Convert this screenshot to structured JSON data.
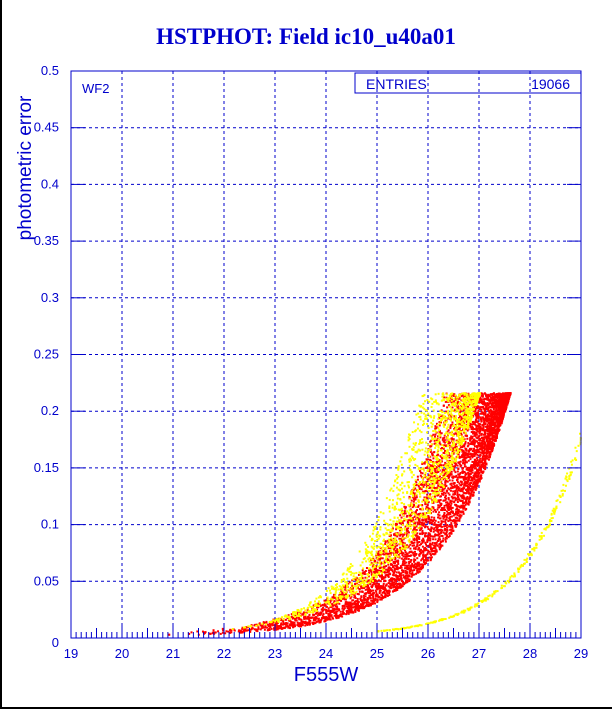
{
  "chart_data": {
    "type": "scatter",
    "title": "HSTPHOT: Field ic10_u40a01",
    "xlabel": "F555W",
    "ylabel": "photometric error",
    "xlim": [
      19,
      29
    ],
    "ylim": [
      0,
      0.5
    ],
    "xticks": [
      "19",
      "20",
      "21",
      "22",
      "23",
      "24",
      "25",
      "26",
      "27",
      "28",
      "29"
    ],
    "yticks": [
      "0",
      "0.05",
      "0.1",
      "0.15",
      "0.2",
      "0.25",
      "0.3",
      "0.35",
      "0.4",
      "0.45",
      "0.5"
    ],
    "grid": true,
    "panel_label": "WF2",
    "stats": {
      "label": "ENTRIES",
      "value": "19066"
    },
    "series": [
      {
        "name": "red stars",
        "color": "#ff0000",
        "mag_range": [
          20,
          27.6
        ],
        "error_cap": 0.215,
        "lower_envelope": [
          [
            24,
            0.014
          ],
          [
            25,
            0.031
          ],
          [
            26,
            0.066
          ],
          [
            27,
            0.137
          ],
          [
            27.6,
            0.215
          ]
        ],
        "upper_envelope": [
          [
            23,
            0.016
          ],
          [
            24,
            0.034
          ],
          [
            25,
            0.076
          ],
          [
            26,
            0.17
          ],
          [
            26.3,
            0.215
          ]
        ]
      },
      {
        "name": "yellow stars",
        "color": "#ffff00",
        "mag_range": [
          22,
          27
        ],
        "error_cap": 0.215,
        "lower_envelope": [
          [
            24,
            0.026
          ],
          [
            25,
            0.053
          ],
          [
            26,
            0.107
          ],
          [
            27,
            0.215
          ]
        ],
        "upper_envelope": [
          [
            23,
            0.016
          ],
          [
            24,
            0.042
          ],
          [
            25,
            0.105
          ],
          [
            25.8,
            0.215
          ]
        ]
      },
      {
        "name": "yellow faint sequence",
        "color": "#ffff00",
        "points": [
          [
            25,
            0.005
          ],
          [
            26,
            0.012
          ],
          [
            27,
            0.03
          ],
          [
            28,
            0.074
          ],
          [
            29,
            0.18
          ]
        ]
      }
    ]
  }
}
